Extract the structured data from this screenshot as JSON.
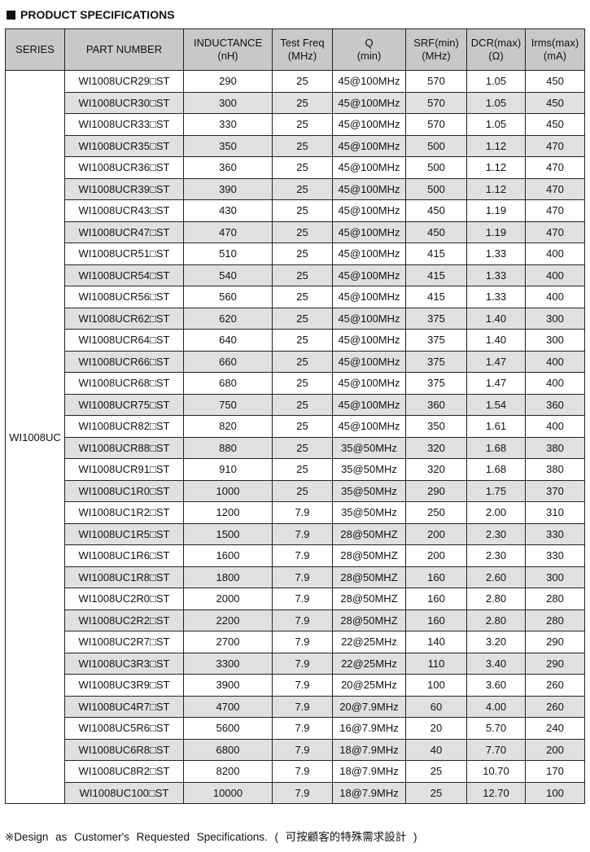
{
  "title": "PRODUCT SPECIFICATIONS",
  "headers": [
    [
      "SERIES",
      ""
    ],
    [
      "PART NUMBER",
      ""
    ],
    [
      "INDUCTANCE",
      "(nH)"
    ],
    [
      "Test Freq",
      "(MHz)"
    ],
    [
      "Q",
      "(min)"
    ],
    [
      "SRF(min)",
      "(MHz)"
    ],
    [
      "DCR(max)",
      "(Ω)"
    ],
    [
      "Irms(max)",
      "(mA)"
    ]
  ],
  "series": "WI1008UC",
  "rows": [
    [
      "WI1008UCR29□ST",
      "290",
      "25",
      "45@100MHz",
      "570",
      "1.05",
      "450"
    ],
    [
      "WI1008UCR30□ST",
      "300",
      "25",
      "45@100MHz",
      "570",
      "1.05",
      "450"
    ],
    [
      "WI1008UCR33□ST",
      "330",
      "25",
      "45@100MHz",
      "570",
      "1.05",
      "450"
    ],
    [
      "WI1008UCR35□ST",
      "350",
      "25",
      "45@100MHz",
      "500",
      "1.12",
      "470"
    ],
    [
      "WI1008UCR36□ST",
      "360",
      "25",
      "45@100MHz",
      "500",
      "1.12",
      "470"
    ],
    [
      "WI1008UCR39□ST",
      "390",
      "25",
      "45@100MHz",
      "500",
      "1.12",
      "470"
    ],
    [
      "WI1008UCR43□ST",
      "430",
      "25",
      "45@100MHz",
      "450",
      "1.19",
      "470"
    ],
    [
      "WI1008UCR47□ST",
      "470",
      "25",
      "45@100MHz",
      "450",
      "1.19",
      "470"
    ],
    [
      "WI1008UCR51□ST",
      "510",
      "25",
      "45@100MHz",
      "415",
      "1.33",
      "400"
    ],
    [
      "WI1008UCR54□ST",
      "540",
      "25",
      "45@100MHz",
      "415",
      "1.33",
      "400"
    ],
    [
      "WI1008UCR56□ST",
      "560",
      "25",
      "45@100MHz",
      "415",
      "1.33",
      "400"
    ],
    [
      "WI1008UCR62□ST",
      "620",
      "25",
      "45@100MHz",
      "375",
      "1.40",
      "300"
    ],
    [
      "WI1008UCR64□ST",
      "640",
      "25",
      "45@100MHz",
      "375",
      "1.40",
      "300"
    ],
    [
      "WI1008UCR66□ST",
      "660",
      "25",
      "45@100MHz",
      "375",
      "1.47",
      "400"
    ],
    [
      "WI1008UCR68□ST",
      "680",
      "25",
      "45@100MHz",
      "375",
      "1.47",
      "400"
    ],
    [
      "WI1008UCR75□ST",
      "750",
      "25",
      "45@100MHz",
      "360",
      "1.54",
      "360"
    ],
    [
      "WI1008UCR82□ST",
      "820",
      "25",
      "45@100MHz",
      "350",
      "1.61",
      "400"
    ],
    [
      "WI1008UCR88□ST",
      "880",
      "25",
      "35@50MHz",
      "320",
      "1.68",
      "380"
    ],
    [
      "WI1008UCR91□ST",
      "910",
      "25",
      "35@50MHz",
      "320",
      "1.68",
      "380"
    ],
    [
      "WI1008UC1R0□ST",
      "1000",
      "25",
      "35@50MHz",
      "290",
      "1.75",
      "370"
    ],
    [
      "WI1008UC1R2□ST",
      "1200",
      "7.9",
      "35@50MHz",
      "250",
      "2.00",
      "310"
    ],
    [
      "WI1008UC1R5□ST",
      "1500",
      "7.9",
      "28@50MHZ",
      "200",
      "2.30",
      "330"
    ],
    [
      "WI1008UC1R6□ST",
      "1600",
      "7.9",
      "28@50MHZ",
      "200",
      "2.30",
      "330"
    ],
    [
      "WI1008UC1R8□ST",
      "1800",
      "7.9",
      "28@50MHZ",
      "160",
      "2.60",
      "300"
    ],
    [
      "WI1008UC2R0□ST",
      "2000",
      "7.9",
      "28@50MHZ",
      "160",
      "2.80",
      "280"
    ],
    [
      "WI1008UC2R2□ST",
      "2200",
      "7.9",
      "28@50MHZ",
      "160",
      "2.80",
      "280"
    ],
    [
      "WI1008UC2R7□ST",
      "2700",
      "7.9",
      "22@25MHz",
      "140",
      "3.20",
      "290"
    ],
    [
      "WI1008UC3R3□ST",
      "3300",
      "7.9",
      "22@25MHz",
      "110",
      "3.40",
      "290"
    ],
    [
      "WI1008UC3R9□ST",
      "3900",
      "7.9",
      "20@25MHz",
      "100",
      "3.60",
      "260"
    ],
    [
      "WI1008UC4R7□ST",
      "4700",
      "7.9",
      "20@7.9MHz",
      "60",
      "4.00",
      "260"
    ],
    [
      "WI1008UC5R6□ST",
      "5600",
      "7.9",
      "16@7.9MHz",
      "20",
      "5.70",
      "240"
    ],
    [
      "WI1008UC6R8□ST",
      "6800",
      "7.9",
      "18@7.9MHz",
      "40",
      "7.70",
      "200"
    ],
    [
      "WI1008UC8R2□ST",
      "8200",
      "7.9",
      "18@7.9MHz",
      "25",
      "10.70",
      "170"
    ],
    [
      "WI1008UC100□ST",
      "10000",
      "7.9",
      "18@7.9MHz",
      "25",
      "12.70",
      "100"
    ]
  ],
  "footnote": "※Design as Customer's Requested Specifications. ( 可按顧客的特殊需求設計 )"
}
